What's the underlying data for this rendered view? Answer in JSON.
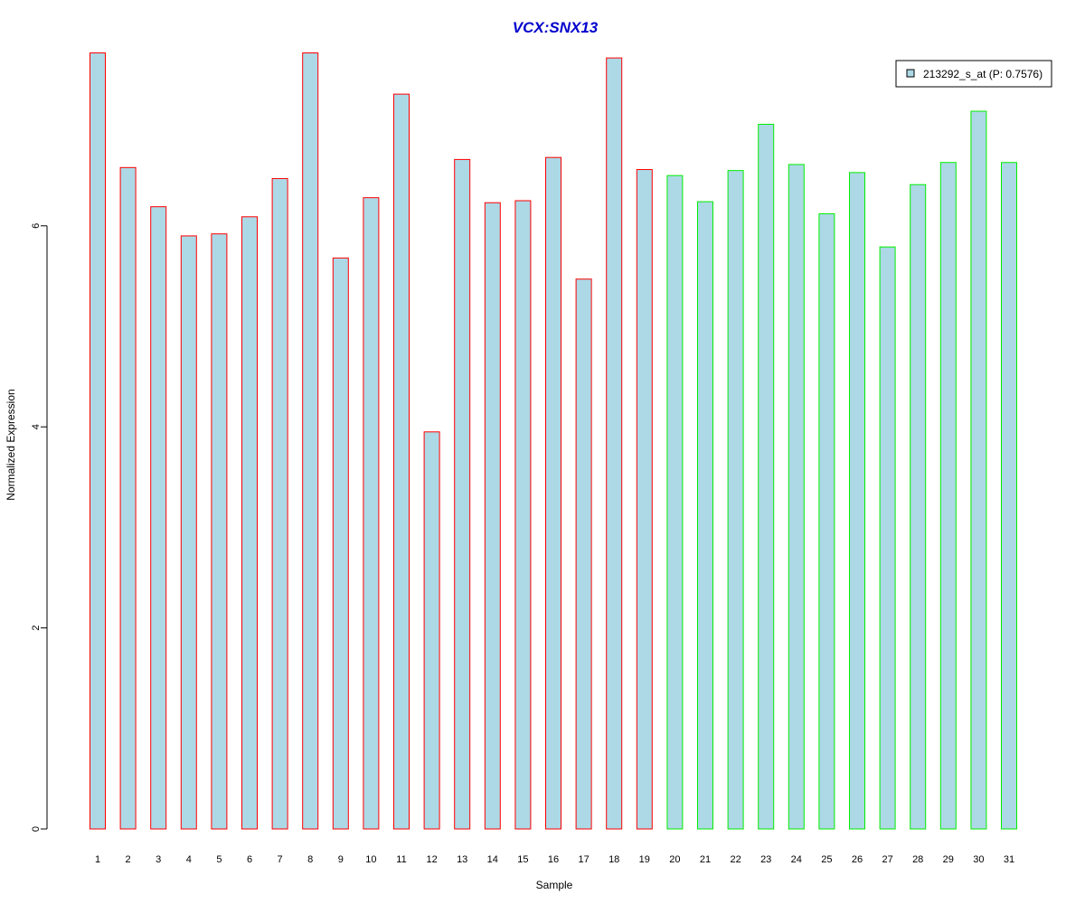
{
  "chart_data": {
    "type": "bar",
    "title": "VCX:SNX13",
    "xlabel": "Sample",
    "ylabel": "Normalized Expression",
    "ylim": [
      0,
      7.8
    ],
    "yticks": [
      "0",
      "2",
      "4",
      "6"
    ],
    "categories": [
      "1",
      "2",
      "3",
      "4",
      "5",
      "6",
      "7",
      "8",
      "9",
      "10",
      "11",
      "12",
      "13",
      "14",
      "15",
      "16",
      "17",
      "18",
      "19",
      "20",
      "21",
      "22",
      "23",
      "24",
      "25",
      "26",
      "27",
      "28",
      "29",
      "30",
      "31"
    ],
    "values": [
      7.72,
      6.58,
      6.19,
      5.9,
      5.92,
      6.09,
      6.47,
      7.72,
      5.68,
      6.28,
      7.31,
      3.95,
      6.66,
      6.23,
      6.25,
      6.68,
      5.47,
      7.67,
      6.56,
      6.5,
      6.24,
      6.55,
      7.01,
      6.61,
      6.12,
      6.53,
      5.79,
      6.41,
      6.63,
      7.14,
      6.63
    ],
    "groups": [
      "red",
      "red",
      "red",
      "red",
      "red",
      "red",
      "red",
      "red",
      "red",
      "red",
      "red",
      "red",
      "red",
      "red",
      "red",
      "red",
      "red",
      "red",
      "red",
      "green",
      "green",
      "green",
      "green",
      "green",
      "green",
      "green",
      "green",
      "green",
      "green",
      "green",
      "green"
    ],
    "grid": false,
    "legend": {
      "placement": "top-right",
      "entries": [
        "213292_s_at (P: 0.7576)"
      ]
    },
    "colors": {
      "fill": "#add8e6",
      "border_group1": "#ff0000",
      "border_group2": "#00ee00",
      "title": "#0000cc"
    }
  }
}
